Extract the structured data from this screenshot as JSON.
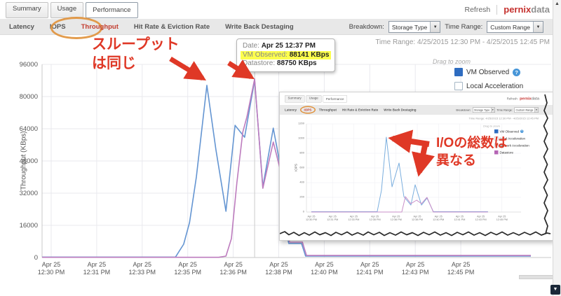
{
  "top_bar": {
    "tabs": [
      "Summary",
      "Usage",
      "Performance"
    ],
    "refresh": "Refresh",
    "logo_pernix": "pernix",
    "logo_data": "data"
  },
  "sub_bar": {
    "tabs": [
      "Latency",
      "IOPS",
      "Throughput",
      "Hit Rate & Eviction Rate",
      "Write Back Destaging"
    ],
    "active_tab": "Throughput",
    "breakdown_label": "Breakdown:",
    "breakdown_value": "Storage Type",
    "time_range_label": "Time Range:",
    "time_range_value": "Custom Range"
  },
  "time_range_line": "Time Range: 4/25/2015 12:30 PM - 4/25/2015 12:45 PM",
  "drag_to_zoom": "Drag to zoom",
  "legend": {
    "vm": "VM Observed",
    "local": "Local Acceleration"
  },
  "tooltip": {
    "date_label": "Date:",
    "date_value": "Apr 25 12:37 PM",
    "vm_label": "VM Observed:",
    "vm_value": "88141 KBps",
    "ds_label": "Datastore:",
    "ds_value": "88750 KBps"
  },
  "annotations": {
    "note1": "スループット\nは同じ",
    "note2": "I/Oの総数は\n異なる"
  },
  "inset": {
    "tabs": [
      "Summary",
      "Usage",
      "Performance"
    ],
    "sub_tabs": [
      "Latency",
      "IOPS",
      "Throughput",
      "Hit Rate & Eviction Rate",
      "Write Back Destaging"
    ],
    "active_tab": "IOPS",
    "refresh": "Refresh",
    "logo_pernix": "pernix",
    "logo_data": "data",
    "breakdown_label": "Breakdown:",
    "breakdown_value": "Storage Type",
    "time_range_label": "Time Range:",
    "time_range_value": "Custom Range",
    "time_range_line": "Time Range: 4/25/2015 12:30 PM - 4/25/2015 12:45 PM",
    "drag_to_zoom": "Drag to zoom",
    "legend": [
      "VM Observed",
      "Local Acceleration",
      "Network Acceleration",
      "Datastore"
    ]
  },
  "chart_data": [
    {
      "type": "line",
      "title": "",
      "ylabel": "Throughput (KBps)",
      "ylim": [
        0,
        96000
      ],
      "yticks": [
        0,
        16000,
        32000,
        48000,
        64000,
        80000,
        96000
      ],
      "xdate": "Apr 25",
      "categories": [
        "12:30 PM",
        "12:31 PM",
        "12:33 PM",
        "12:35 PM",
        "12:36 PM",
        "12:38 PM",
        "12:40 PM",
        "12:41 PM",
        "12:43 PM",
        "12:45 PM"
      ],
      "grid": true,
      "legend_position": "top-right",
      "crosshair_tick": 4.47,
      "series": [
        {
          "name": "VM Observed",
          "color": "#6495d2",
          "points": [
            [
              -0.2,
              200
            ],
            [
              2.73,
              200
            ],
            [
              2.91,
              6600
            ],
            [
              3.04,
              17400
            ],
            [
              3.19,
              40000
            ],
            [
              3.42,
              85600
            ],
            [
              3.62,
              53600
            ],
            [
              3.84,
              23000
            ],
            [
              4.04,
              65700
            ],
            [
              4.25,
              59800
            ],
            [
              4.47,
              88141
            ],
            [
              4.65,
              35100
            ],
            [
              4.88,
              64300
            ],
            [
              5.04,
              44900
            ],
            [
              5.12,
              37200
            ],
            [
              5.16,
              13200
            ],
            [
              5.22,
              7000
            ],
            [
              5.5,
              7000
            ],
            [
              5.59,
              700
            ],
            [
              10.54,
              700
            ]
          ]
        },
        {
          "name": "Datastore",
          "color": "#bd7cbe",
          "points": [
            [
              -0.2,
              100
            ],
            [
              3.68,
              100
            ],
            [
              3.84,
              700
            ],
            [
              3.96,
              9400
            ],
            [
              4.08,
              37200
            ],
            [
              4.21,
              62300
            ],
            [
              4.3,
              69900
            ],
            [
              4.47,
              88750
            ],
            [
              4.65,
              34400
            ],
            [
              4.88,
              57400
            ],
            [
              5.04,
              43100
            ],
            [
              5.12,
              37900
            ],
            [
              5.16,
              13200
            ],
            [
              5.24,
              7650
            ],
            [
              5.52,
              7650
            ],
            [
              5.61,
              1000
            ],
            [
              10.54,
              1000
            ]
          ]
        }
      ]
    },
    {
      "type": "line",
      "title": "",
      "ylabel": "IOPS",
      "ylim": [
        0,
        1200
      ],
      "yticks": [
        0,
        200,
        400,
        600,
        800,
        1000,
        1200
      ],
      "xdate": "Apr 25",
      "categories": [
        "12:30 PM",
        "12:31 PM",
        "12:33 PM",
        "12:35 PM",
        "12:36 PM",
        "12:38 PM",
        "12:40 PM",
        "12:41 PM",
        "12:43 PM",
        "12:45 PM"
      ],
      "grid": true,
      "legend_position": "top-right",
      "crosshair_tick": null,
      "series": [
        {
          "name": "VM Observed",
          "color": "#7aaede",
          "points": [
            [
              0,
              5
            ],
            [
              3.11,
              5
            ],
            [
              3.31,
              295
            ],
            [
              3.54,
              1019
            ],
            [
              3.81,
              343
            ],
            [
              4.14,
              667
            ],
            [
              4.37,
              210
            ],
            [
              4.7,
              95
            ],
            [
              4.9,
              371
            ],
            [
              5.2,
              95
            ],
            [
              5.46,
              190
            ],
            [
              5.76,
              5
            ],
            [
              8.34,
              5
            ]
          ]
        },
        {
          "name": "Datastore",
          "color": "#c98fc9",
          "points": [
            [
              0,
              0
            ],
            [
              4.27,
              0
            ],
            [
              4.44,
              210
            ],
            [
              4.7,
              114
            ],
            [
              4.97,
              162
            ],
            [
              5.2,
              114
            ],
            [
              5.46,
              200
            ],
            [
              5.76,
              0
            ],
            [
              8.34,
              0
            ]
          ]
        }
      ]
    }
  ]
}
